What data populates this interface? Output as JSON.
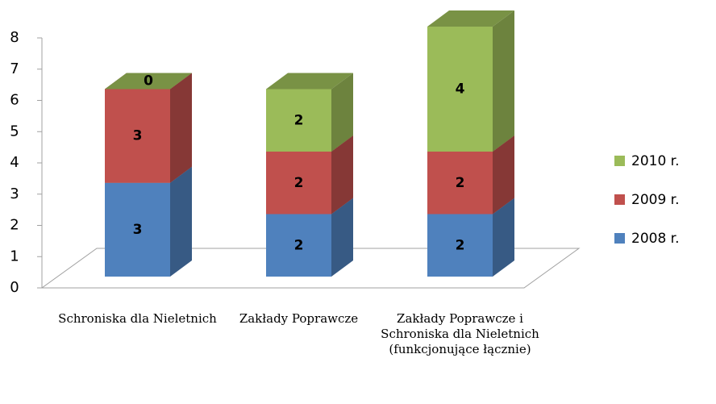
{
  "chart_data": {
    "type": "bar3d_stacked",
    "categories": [
      "Schroniska dla Nieletnich",
      "Zakłady Poprawcze",
      "Zakłady Poprawcze i Schroniska dla Nieletnich (funkcjonujące łącznie)"
    ],
    "series": [
      {
        "name": "2008 r.",
        "color": "#4f81bd",
        "values": [
          3,
          2,
          2
        ]
      },
      {
        "name": "2009 r.",
        "color": "#c0504d",
        "values": [
          3,
          2,
          2
        ]
      },
      {
        "name": "2010 r.",
        "color": "#9bbb59",
        "values": [
          0,
          2,
          4
        ]
      }
    ],
    "ylim": [
      0,
      8
    ],
    "yticks": [
      0,
      1,
      2,
      3,
      4,
      5,
      6,
      7,
      8
    ],
    "legend": "right"
  }
}
